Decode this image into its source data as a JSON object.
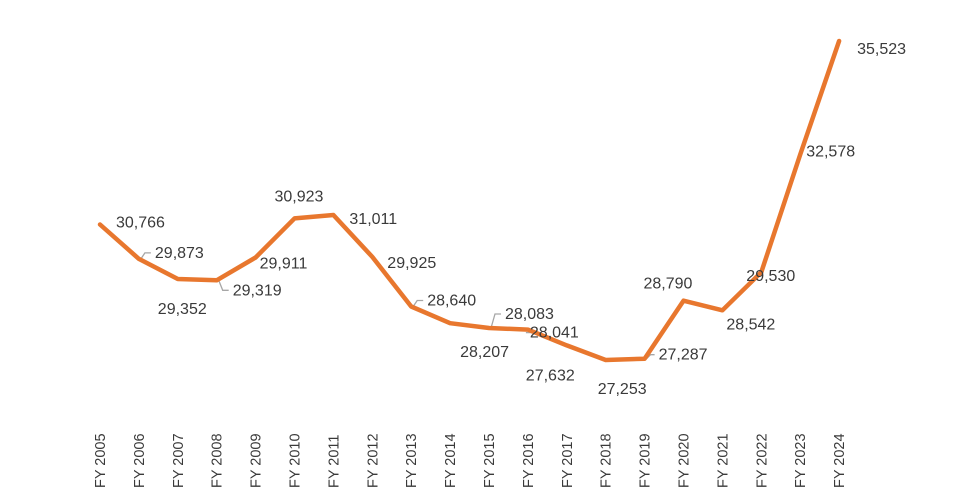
{
  "chart_data": {
    "type": "line",
    "title": "",
    "xlabel": "",
    "ylabel": "",
    "ylim": [
      26000,
      36000
    ],
    "grid": false,
    "legend": "none",
    "line_color": "#E8772E",
    "categories": [
      "FY 2005",
      "FY 2006",
      "FY 2007",
      "FY 2008",
      "FY 2009",
      "FY 2010",
      "FY 2011",
      "FY 2012",
      "FY 2013",
      "FY 2014",
      "FY 2015",
      "FY 2016",
      "FY 2017",
      "FY 2018",
      "FY 2019",
      "FY 2020",
      "FY 2021",
      "FY 2022",
      "FY 2023",
      "FY 2024"
    ],
    "values": [
      30766,
      29873,
      29352,
      29319,
      29911,
      30923,
      31011,
      29925,
      28640,
      28207,
      28083,
      28041,
      27632,
      27253,
      27287,
      28790,
      28542,
      29530,
      32578,
      35523
    ],
    "data_labels": [
      "30,766",
      "29,873",
      "29,352",
      "29,319",
      "29,911",
      "30,923",
      "31,011",
      "29,925",
      "28,640",
      "28,207",
      "28,083",
      "28,041",
      "27,632",
      "27,253",
      "27,287",
      "28,790",
      "28,542",
      "29,530",
      "32,578",
      "35,523"
    ]
  }
}
